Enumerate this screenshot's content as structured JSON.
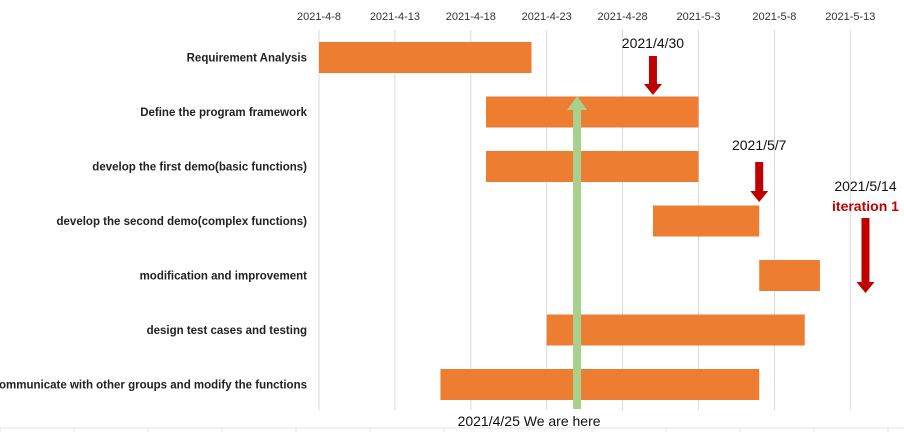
{
  "chart_data": {
    "type": "gantt",
    "x_axis": {
      "min": "2021-4-8",
      "max": "2021-5-13",
      "tick_labels": [
        "2021-4-8",
        "2021-4-13",
        "2021-4-18",
        "2021-4-23",
        "2021-4-28",
        "2021-5-3",
        "2021-5-8",
        "2021-5-13"
      ],
      "grid": true,
      "position": "top"
    },
    "tasks": [
      {
        "label": "Requirement Analysis",
        "start": "2021-4-8",
        "end": "2021-4-22"
      },
      {
        "label": "Define the program framework",
        "start": "2021-4-19",
        "end": "2021-5-3"
      },
      {
        "label": "develop the first demo(basic functions)",
        "start": "2021-4-19",
        "end": "2021-5-3"
      },
      {
        "label": "develop the second demo(complex functions)",
        "start": "2021-4-30",
        "end": "2021-5-7"
      },
      {
        "label": "modification and improvement",
        "start": "2021-5-7",
        "end": "2021-5-11"
      },
      {
        "label": "design test cases and testing",
        "start": "2021-4-23",
        "end": "2021-5-10"
      },
      {
        "label": "communicate with other groups and modify the functions",
        "start": "2021-4-16",
        "end": "2021-5-7"
      }
    ],
    "milestones": [
      {
        "date": "2021-4-30",
        "label": "2021/4/30",
        "sublabel": ""
      },
      {
        "date": "2021-5-7",
        "label": "2021/5/7",
        "sublabel": ""
      },
      {
        "date": "2021-5-14",
        "label": "2021/5/14",
        "sublabel": "iteration 1"
      }
    ],
    "current_marker": {
      "date": "2021-4-25",
      "label": "2021/4/25 We are here"
    },
    "colors": {
      "bar": "#ed7d31",
      "milestone_arrow": "#c00000",
      "current_marker": "#a9d18e",
      "grid": "#d9d9d9"
    }
  }
}
